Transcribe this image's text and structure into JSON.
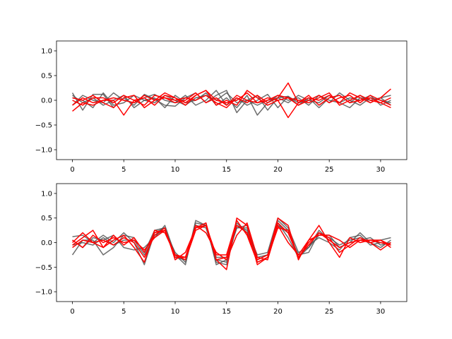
{
  "colors": {
    "gray": "#555555",
    "red": "#ff0000",
    "axes": "#000000"
  },
  "chart_data": [
    {
      "type": "line",
      "title": "",
      "xlabel": "",
      "ylabel": "",
      "xlim": [
        -1.55,
        32.55
      ],
      "ylim": [
        -1.2,
        1.2
      ],
      "xticks": [
        0,
        5,
        10,
        15,
        20,
        25,
        30
      ],
      "yticks": [
        -1.0,
        -0.5,
        0.0,
        0.5,
        1.0
      ],
      "ytick_labels": [
        "−1.0",
        "−0.5",
        "0.0",
        "0.5",
        "1.0"
      ],
      "grid": false,
      "x": [
        0,
        1,
        2,
        3,
        4,
        5,
        6,
        7,
        8,
        9,
        10,
        11,
        12,
        13,
        14,
        15,
        16,
        17,
        18,
        19,
        20,
        21,
        22,
        23,
        24,
        25,
        26,
        27,
        28,
        29,
        30,
        31
      ],
      "series": [
        {
          "color": "gray",
          "values": [
            0.15,
            -0.2,
            0.12,
            0.12,
            -0.15,
            0.05,
            -0.1,
            0.12,
            0.02,
            -0.1,
            -0.12,
            0.05,
            0.15,
            -0.05,
            0.1,
            0.2,
            -0.25,
            0.0,
            0.1,
            -0.2,
            0.05,
            0.08,
            -0.1,
            0.05,
            -0.15,
            0.05,
            0.1,
            -0.05,
            0.1,
            -0.05,
            0.05,
            0.1
          ]
        },
        {
          "color": "gray",
          "values": [
            0.05,
            0.0,
            -0.15,
            0.15,
            -0.1,
            -0.05,
            0.1,
            0.0,
            0.05,
            -0.15,
            0.1,
            -0.05,
            0.0,
            0.15,
            -0.1,
            0.05,
            -0.15,
            0.1,
            -0.3,
            -0.05,
            0.1,
            0.0,
            0.05,
            -0.1,
            0.1,
            0.0,
            -0.05,
            0.05,
            0.0,
            0.1,
            -0.1,
            0.0
          ]
        },
        {
          "color": "gray",
          "values": [
            -0.1,
            0.1,
            0.0,
            -0.05,
            0.15,
            0.0,
            -0.05,
            0.05,
            0.12,
            0.0,
            -0.05,
            0.1,
            -0.1,
            0.0,
            0.2,
            -0.1,
            0.05,
            -0.1,
            0.0,
            0.12,
            -0.15,
            0.08,
            -0.05,
            0.0,
            0.1,
            -0.05,
            0.15,
            0.0,
            -0.1,
            0.05,
            0.0,
            -0.05
          ]
        },
        {
          "color": "gray",
          "values": [
            0.1,
            -0.05,
            0.05,
            -0.1,
            0.0,
            0.1,
            -0.15,
            0.0,
            -0.05,
            0.1,
            0.0,
            -0.1,
            0.05,
            0.1,
            0.0,
            0.15,
            -0.05,
            0.0,
            -0.1,
            0.0,
            0.05,
            -0.05,
            0.1,
            0.0,
            -0.05,
            0.1,
            -0.05,
            -0.15,
            0.05,
            0.0,
            0.05,
            -0.1
          ]
        },
        {
          "color": "red",
          "values": [
            -0.22,
            -0.05,
            -0.1,
            0.0,
            0.0,
            -0.3,
            0.0,
            0.05,
            -0.1,
            0.1,
            0.05,
            -0.1,
            0.1,
            0.2,
            0.0,
            -0.05,
            0.0,
            0.15,
            -0.05,
            0.05,
            0.0,
            -0.35,
            -0.05,
            0.05,
            0.0,
            0.1,
            -0.05,
            0.15,
            0.05,
            -0.05,
            0.05,
            0.23
          ]
        },
        {
          "color": "red",
          "values": [
            0.05,
            0.0,
            0.1,
            -0.05,
            -0.15,
            0.05,
            0.1,
            -0.15,
            0.0,
            0.15,
            0.05,
            -0.05,
            0.1,
            0.2,
            -0.1,
            0.0,
            -0.1,
            0.2,
            0.05,
            -0.1,
            0.0,
            0.05,
            -0.1,
            0.0,
            0.1,
            -0.05,
            0.05,
            0.1,
            -0.05,
            0.1,
            0.0,
            -0.1
          ]
        },
        {
          "color": "red",
          "values": [
            0.0,
            -0.1,
            0.05,
            0.05,
            -0.05,
            0.1,
            0.0,
            -0.1,
            0.1,
            0.05,
            -0.05,
            0.0,
            0.15,
            -0.05,
            0.05,
            -0.1,
            0.1,
            0.0,
            -0.05,
            0.0,
            0.1,
            0.05,
            0.0,
            -0.05,
            0.05,
            0.15,
            -0.1,
            0.0,
            0.1,
            0.0,
            -0.05,
            0.05
          ]
        },
        {
          "color": "red",
          "values": [
            -0.1,
            0.05,
            -0.05,
            0.0,
            0.05,
            0.0,
            -0.05,
            0.1,
            0.0,
            0.05,
            0.0,
            0.05,
            0.0,
            0.1,
            -0.05,
            -0.15,
            0.05,
            -0.05,
            0.1,
            -0.05,
            0.05,
            0.35,
            -0.05,
            0.1,
            -0.1,
            0.05,
            0.1,
            -0.05,
            0.0,
            0.05,
            -0.05,
            -0.15
          ]
        }
      ]
    },
    {
      "type": "line",
      "title": "",
      "xlabel": "",
      "ylabel": "",
      "xlim": [
        -1.55,
        32.55
      ],
      "ylim": [
        -1.2,
        1.2
      ],
      "xticks": [
        0,
        5,
        10,
        15,
        20,
        25,
        30
      ],
      "yticks": [
        -1.0,
        -0.5,
        0.0,
        0.5,
        1.0
      ],
      "ytick_labels": [
        "−1.0",
        "−0.5",
        "0.0",
        "0.5",
        "1.0"
      ],
      "grid": false,
      "x": [
        0,
        1,
        2,
        3,
        4,
        5,
        6,
        7,
        8,
        9,
        10,
        11,
        12,
        13,
        14,
        15,
        16,
        17,
        18,
        19,
        20,
        21,
        22,
        23,
        24,
        25,
        26,
        27,
        28,
        29,
        30,
        31
      ],
      "series": [
        {
          "color": "gray",
          "values": [
            0.12,
            0.15,
            0.0,
            0.15,
            0.0,
            0.2,
            0.0,
            -0.45,
            0.2,
            0.3,
            -0.25,
            -0.45,
            0.45,
            0.35,
            -0.4,
            -0.45,
            0.35,
            0.25,
            -0.25,
            -0.2,
            0.5,
            0.3,
            -0.2,
            -0.1,
            0.25,
            0.05,
            -0.1,
            0.0,
            0.2,
            0.0,
            0.05,
            0.1
          ]
        },
        {
          "color": "gray",
          "values": [
            -0.25,
            0.05,
            0.05,
            -0.25,
            -0.1,
            0.15,
            0.1,
            -0.2,
            0.25,
            0.3,
            -0.3,
            -0.35,
            0.3,
            0.4,
            -0.45,
            -0.35,
            0.3,
            0.35,
            -0.4,
            -0.3,
            0.4,
            0.1,
            -0.3,
            -0.05,
            0.1,
            0.0,
            -0.15,
            0.1,
            0.15,
            -0.05,
            0.0,
            -0.05
          ]
        },
        {
          "color": "gray",
          "values": [
            0.05,
            -0.1,
            0.1,
            0.05,
            0.15,
            -0.1,
            -0.15,
            -0.1,
            0.1,
            0.35,
            -0.25,
            -0.3,
            0.35,
            0.3,
            -0.35,
            -0.4,
            0.4,
            0.2,
            -0.3,
            -0.25,
            0.35,
            0.2,
            -0.25,
            -0.2,
            0.2,
            0.1,
            -0.05,
            0.05,
            0.1,
            0.0,
            -0.1,
            0.05
          ]
        },
        {
          "color": "gray",
          "values": [
            -0.05,
            0.0,
            -0.05,
            0.1,
            -0.05,
            0.05,
            0.05,
            -0.25,
            0.15,
            0.25,
            -0.2,
            -0.4,
            0.4,
            0.35,
            -0.3,
            -0.3,
            0.3,
            0.3,
            -0.35,
            -0.25,
            0.45,
            0.25,
            -0.3,
            -0.1,
            0.15,
            0.15,
            -0.1,
            0.0,
            0.05,
            0.1,
            -0.05,
            0.0
          ]
        },
        {
          "color": "red",
          "values": [
            0.0,
            0.2,
            0.0,
            0.05,
            -0.05,
            0.1,
            0.0,
            -0.3,
            0.15,
            0.3,
            -0.35,
            -0.2,
            0.3,
            0.4,
            -0.35,
            -0.55,
            0.5,
            0.35,
            -0.45,
            -0.3,
            0.5,
            0.35,
            -0.35,
            0.05,
            0.35,
            0.0,
            -0.3,
            0.1,
            0.0,
            0.05,
            0.05,
            -0.1
          ]
        },
        {
          "color": "red",
          "values": [
            -0.05,
            0.1,
            0.25,
            -0.1,
            0.05,
            0.15,
            -0.1,
            -0.4,
            0.25,
            0.2,
            -0.25,
            -0.35,
            0.25,
            0.35,
            -0.25,
            -0.25,
            0.45,
            0.15,
            -0.4,
            -0.3,
            0.3,
            0.25,
            -0.3,
            -0.05,
            0.2,
            0.1,
            -0.2,
            -0.05,
            0.1,
            0.0,
            0.05,
            -0.05
          ]
        },
        {
          "color": "red",
          "values": [
            0.05,
            -0.1,
            0.15,
            0.0,
            0.1,
            0.0,
            0.05,
            -0.15,
            0.1,
            0.25,
            -0.3,
            -0.3,
            0.35,
            0.2,
            -0.2,
            -0.35,
            0.15,
            0.4,
            -0.3,
            -0.35,
            0.35,
            0.0,
            -0.25,
            0.05,
            0.15,
            0.15,
            0.05,
            -0.1,
            0.05,
            0.0,
            -0.15,
            0.0
          ]
        },
        {
          "color": "red",
          "values": [
            -0.1,
            0.05,
            0.0,
            -0.1,
            0.15,
            -0.05,
            0.1,
            -0.2,
            0.2,
            0.25,
            -0.25,
            -0.3,
            0.3,
            0.35,
            -0.35,
            -0.3,
            0.35,
            0.2,
            -0.35,
            -0.25,
            0.4,
            0.2,
            -0.3,
            0.0,
            0.2,
            0.05,
            -0.1,
            0.0,
            0.05,
            0.05,
            0.0,
            -0.05
          ]
        }
      ]
    }
  ]
}
